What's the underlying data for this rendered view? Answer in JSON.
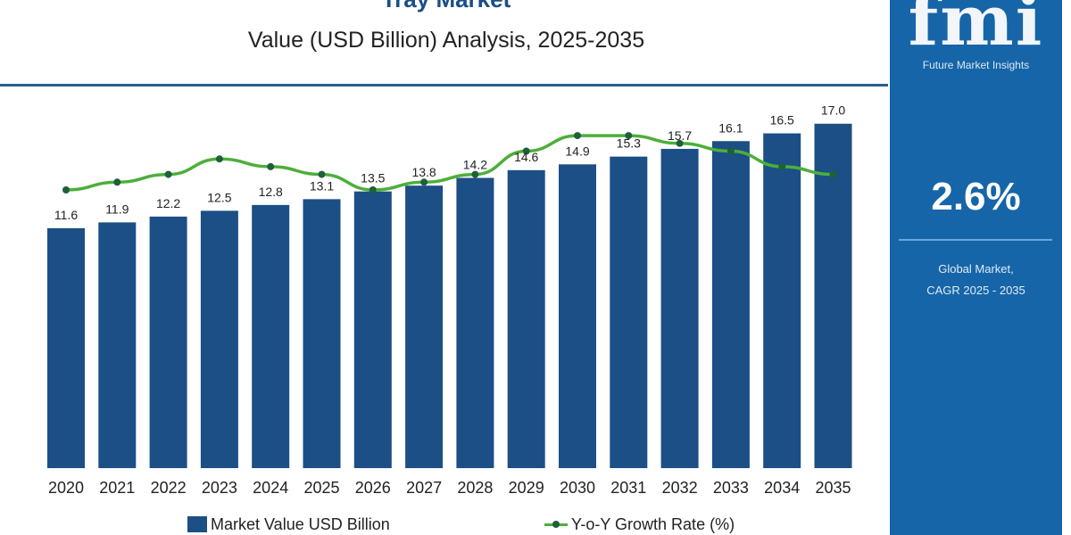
{
  "header": {
    "title": "Tray Market",
    "subtitle": "Value (USD Billion) Analysis, 2025-2035"
  },
  "panel": {
    "logo": "fmi",
    "logo_sub": "Future Market Insights",
    "cagr": "2.6%",
    "cagr_label_1": "Global Market,",
    "cagr_label_2": "CAGR 2025 - 2035",
    "color": "#1665a8"
  },
  "chart_data": {
    "type": "bar",
    "title": "Value (USD Billion) Analysis, 2025-2035",
    "categories": [
      "2020",
      "2021",
      "2022",
      "2023",
      "2024",
      "2025",
      "2026",
      "2027",
      "2028",
      "2029",
      "2030",
      "2031",
      "2032",
      "2033",
      "2034",
      "2035"
    ],
    "series": [
      {
        "name": "Market Value USD Billion",
        "type": "bar",
        "color": "#1b4f86",
        "values": [
          11.6,
          11.9,
          12.2,
          12.5,
          12.8,
          13.1,
          13.5,
          13.8,
          14.2,
          14.6,
          14.9,
          15.3,
          15.7,
          16.1,
          16.5,
          17.0
        ],
        "labels": [
          "11.6",
          "11.9",
          "12.2",
          "12.5",
          "12.8",
          "13.1",
          "13.5",
          "13.8",
          "14.2",
          "14.6",
          "14.9",
          "15.3",
          "15.7",
          "16.1",
          "16.5",
          "17.0"
        ]
      },
      {
        "name": "Y-o-Y Growth Rate (%)",
        "type": "line",
        "color": "#4caf3a",
        "values": [
          2.5,
          2.6,
          2.7,
          2.9,
          2.8,
          2.7,
          2.5,
          2.6,
          2.7,
          3.0,
          3.2,
          3.2,
          3.1,
          3.0,
          2.8,
          2.7
        ]
      }
    ],
    "grid": false,
    "legend": "bottom"
  }
}
